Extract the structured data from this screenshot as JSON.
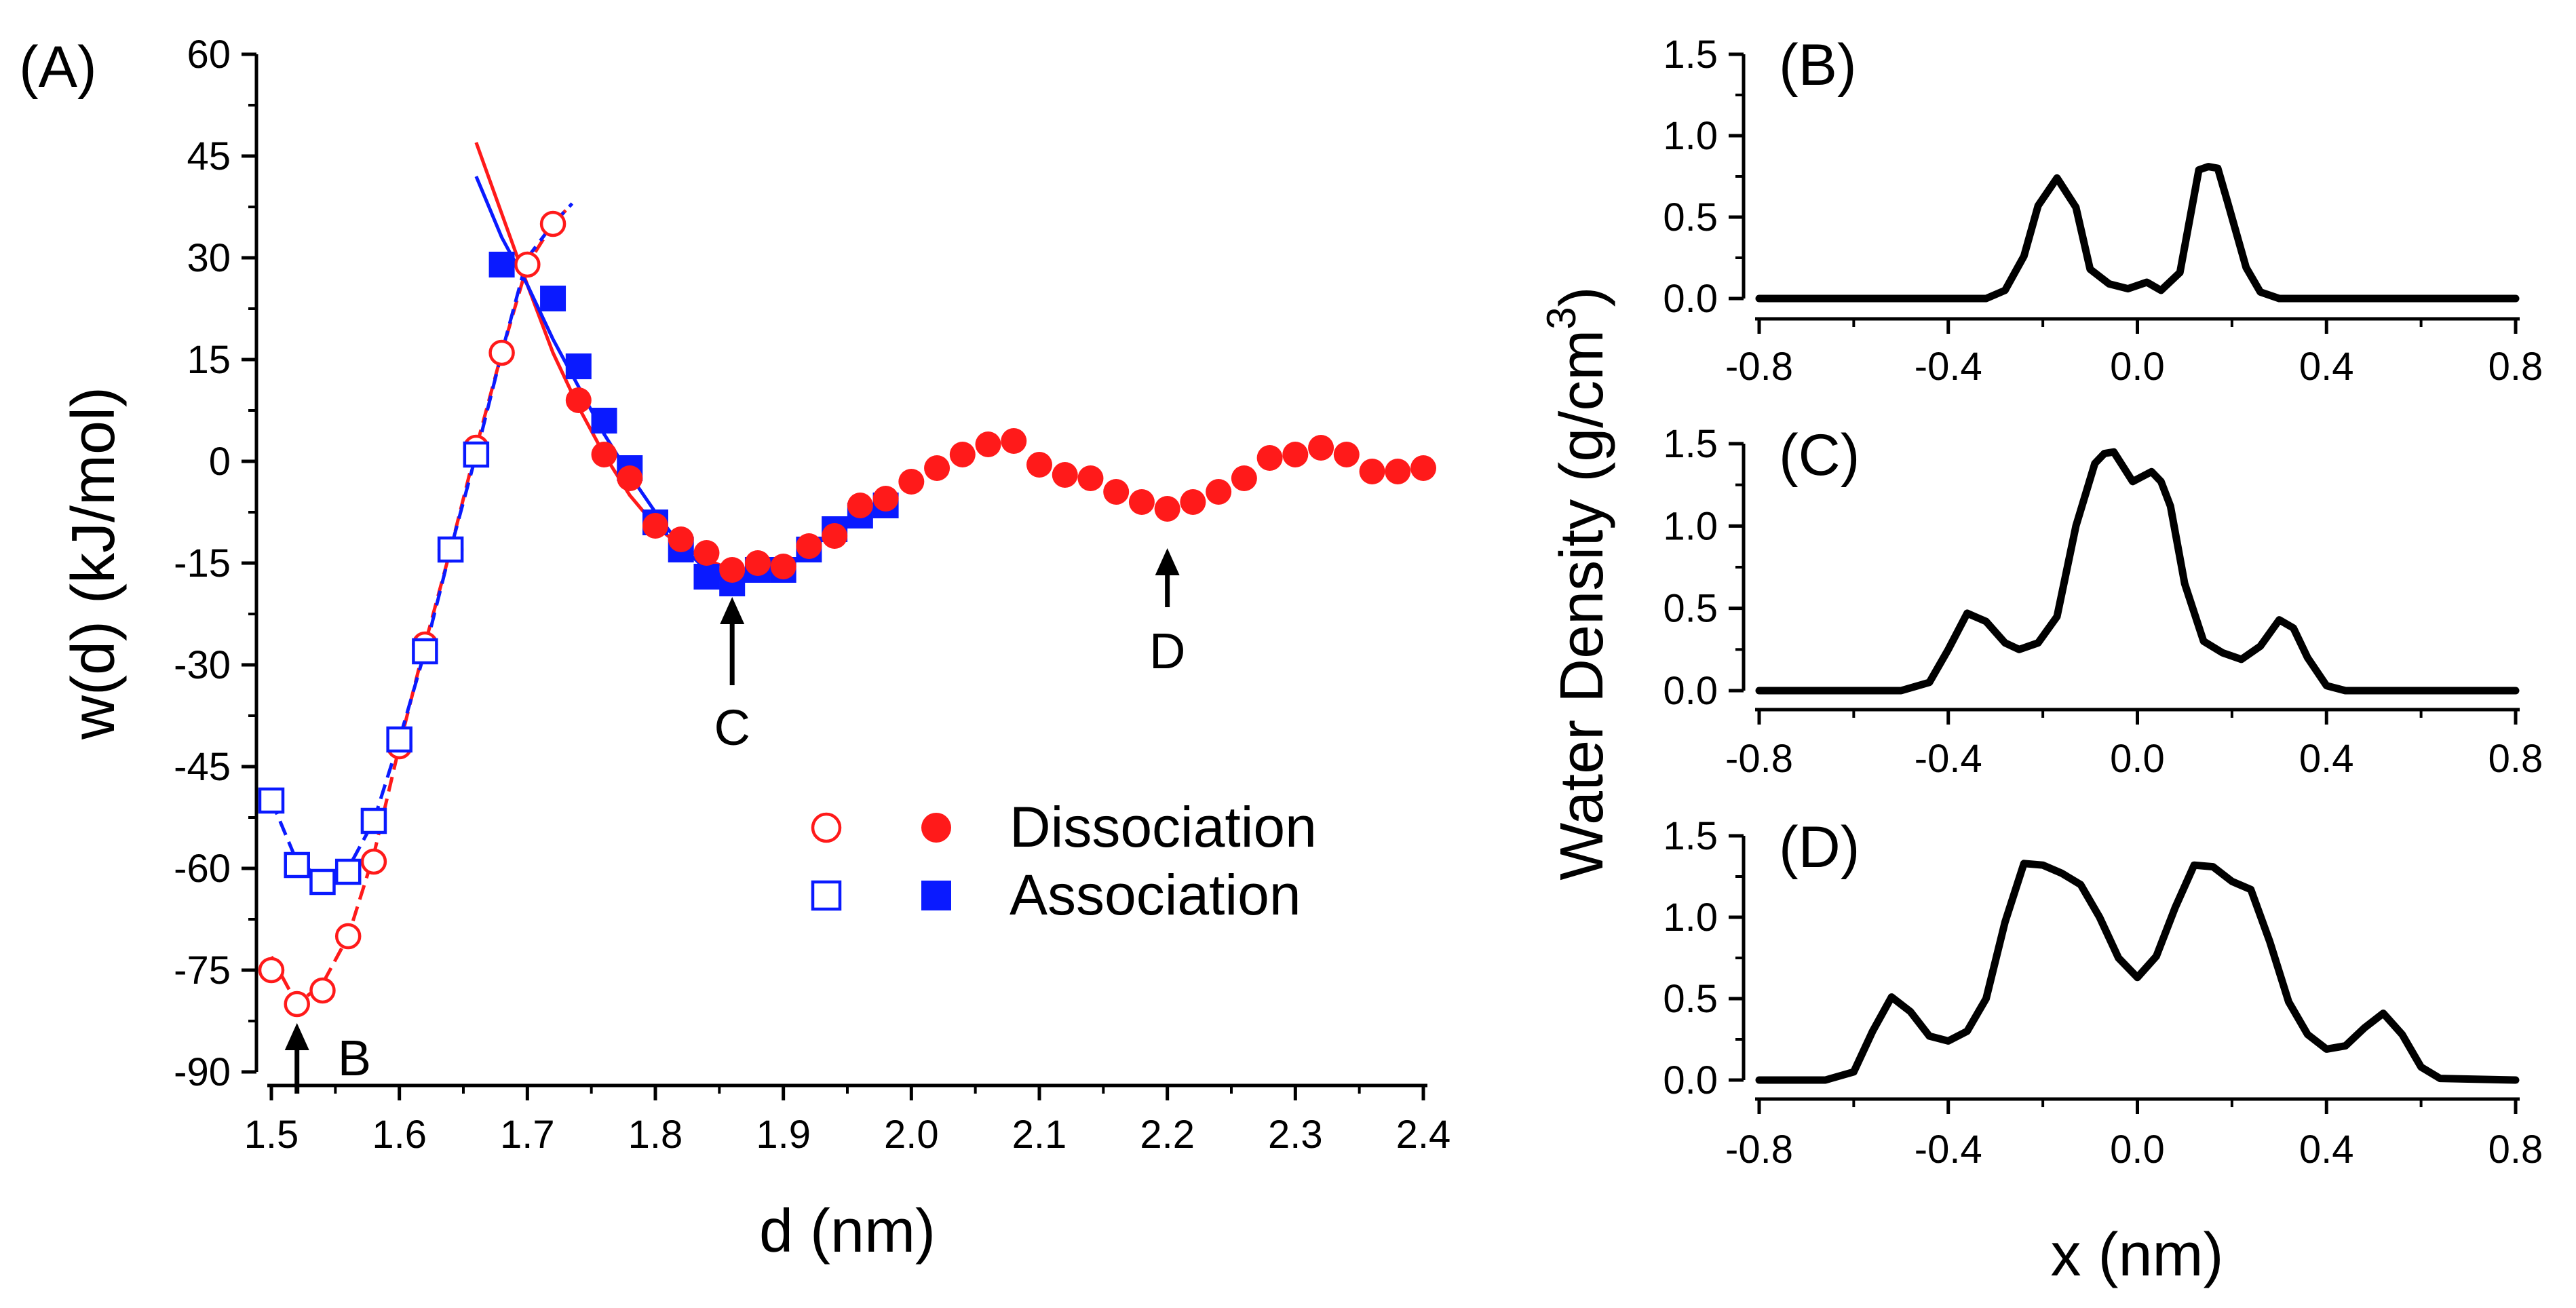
{
  "chart_data": [
    {
      "panel": "(A)",
      "type": "scatter",
      "xlabel": "d (nm)",
      "ylabel": "w(d) (kJ/mol)",
      "xlim": [
        1.5,
        2.4
      ],
      "ylim": [
        -90,
        60
      ],
      "x_ticks": [
        "1.5",
        "1.6",
        "1.7",
        "1.8",
        "1.9",
        "2.0",
        "2.1",
        "2.2",
        "2.3",
        "2.4"
      ],
      "y_ticks": [
        "60",
        "45",
        "30",
        "15",
        "0",
        "-15",
        "-30",
        "-45",
        "-60",
        "-75",
        "-90"
      ],
      "colors": {
        "dissociation": "#ff1a1a",
        "association": "#0a1aff"
      },
      "legend": [
        {
          "label": "Dissociation"
        },
        {
          "label": "Association"
        }
      ],
      "series": [
        {
          "name": "Dissociation (open)",
          "marker": "open-circle",
          "color": "#ff1a1a",
          "x": [
            1.5,
            1.52,
            1.54,
            1.56,
            1.58,
            1.6,
            1.62,
            1.64,
            1.66,
            1.68,
            1.7,
            1.72
          ],
          "y": [
            -75,
            -80,
            -78,
            -70,
            -59,
            -42,
            -27,
            -13,
            2,
            16,
            29,
            35
          ]
        },
        {
          "name": "Association (open)",
          "marker": "open-square",
          "color": "#0a1aff",
          "x": [
            1.5,
            1.52,
            1.54,
            1.56,
            1.58,
            1.6,
            1.62,
            1.64,
            1.66
          ],
          "y": [
            -50,
            -59.5,
            -62,
            -60.5,
            -53,
            -41,
            -28,
            -13,
            1
          ]
        },
        {
          "name": "Association (filled)",
          "marker": "filled-square",
          "color": "#0a1aff",
          "x": [
            1.68,
            1.72,
            1.74,
            1.76,
            1.78,
            1.8,
            1.82,
            1.84,
            1.86,
            1.88,
            1.9,
            1.92,
            1.94,
            1.96,
            1.98
          ],
          "y": [
            29,
            24,
            14,
            6,
            -1,
            -9,
            -13,
            -17,
            -18,
            -16,
            -16,
            -13,
            -10,
            -8,
            -6.5
          ]
        },
        {
          "name": "Dissociation (filled)",
          "marker": "filled-circle",
          "color": "#ff1a1a",
          "x": [
            1.74,
            1.76,
            1.78,
            1.8,
            1.82,
            1.84,
            1.86,
            1.88,
            1.9,
            1.92,
            1.94,
            1.96,
            1.98,
            2.0,
            2.02,
            2.04,
            2.06,
            2.08,
            2.1,
            2.12,
            2.14,
            2.16,
            2.18,
            2.2,
            2.22,
            2.24,
            2.26,
            2.28,
            2.3,
            2.32,
            2.34,
            2.36,
            2.38,
            2.4
          ],
          "y": [
            9,
            1,
            -2.5,
            -9.5,
            -11.5,
            -13.5,
            -16,
            -15,
            -15.5,
            -12.5,
            -11,
            -6.5,
            -5.5,
            -3,
            -1,
            1,
            2.5,
            3,
            -0.5,
            -2,
            -2.5,
            -4.5,
            -6,
            -7,
            -6,
            -4.5,
            -2.5,
            0.5,
            1,
            2,
            1,
            -1.5,
            -1.5,
            -1
          ]
        }
      ],
      "fit_lines": [
        {
          "name": "dissociation-dashed",
          "color": "#ff1a1a",
          "style": "dashed",
          "x": [
            1.5,
            1.52,
            1.54,
            1.56,
            1.58,
            1.6,
            1.62,
            1.64,
            1.66,
            1.68,
            1.7,
            1.72,
            1.73
          ],
          "y": [
            -73,
            -80,
            -77,
            -70,
            -58,
            -42,
            -27,
            -13,
            2,
            16,
            29,
            35,
            37
          ]
        },
        {
          "name": "association-dashed",
          "color": "#0a1aff",
          "style": "dashed",
          "x": [
            1.5,
            1.52,
            1.54,
            1.56,
            1.58,
            1.6,
            1.62,
            1.64,
            1.66,
            1.68,
            1.7,
            1.72,
            1.735
          ],
          "y": [
            -50,
            -59,
            -61.5,
            -60,
            -53,
            -41,
            -28,
            -13,
            1,
            16,
            30,
            35,
            38
          ]
        },
        {
          "name": "dissociation-solid",
          "color": "#ff1a1a",
          "style": "solid",
          "x": [
            1.66,
            1.7,
            1.72,
            1.74,
            1.76,
            1.78,
            1.8,
            1.82,
            1.84,
            1.86
          ],
          "y": [
            47,
            26,
            16,
            8,
            1,
            -5,
            -9.5,
            -12.5,
            -14.5,
            -16
          ]
        },
        {
          "name": "association-solid",
          "color": "#0a1aff",
          "style": "solid",
          "x": [
            1.66,
            1.68,
            1.7,
            1.72,
            1.74,
            1.76,
            1.78,
            1.8,
            1.82,
            1.84,
            1.86
          ],
          "y": [
            42,
            33,
            26,
            18,
            11,
            4,
            -2,
            -7.5,
            -12.5,
            -16,
            -18.5
          ]
        }
      ],
      "annotations": [
        {
          "label": "B",
          "x": 1.52
        },
        {
          "label": "C",
          "x": 1.86
        },
        {
          "label": "D",
          "x": 2.2
        }
      ]
    },
    {
      "panel": "(B)",
      "type": "line",
      "xlim": [
        -0.8,
        0.8
      ],
      "ylim": [
        0,
        1.5
      ],
      "x_ticks": [
        "-0.8",
        "-0.4",
        "0.0",
        "0.4",
        "0.8"
      ],
      "y_ticks": [
        "1.5",
        "1.0",
        "0.5",
        "0.0"
      ],
      "x": [
        -0.8,
        -0.32,
        -0.28,
        -0.24,
        -0.21,
        -0.17,
        -0.13,
        -0.1,
        -0.06,
        -0.02,
        0.02,
        0.05,
        0.09,
        0.13,
        0.15,
        0.17,
        0.19,
        0.23,
        0.26,
        0.3,
        0.34,
        0.8
      ],
      "y": [
        0.0,
        0.0,
        0.05,
        0.26,
        0.57,
        0.74,
        0.56,
        0.18,
        0.09,
        0.06,
        0.1,
        0.05,
        0.16,
        0.79,
        0.81,
        0.8,
        0.6,
        0.19,
        0.04,
        0.0,
        0.0,
        0.0
      ]
    },
    {
      "panel": "(C)",
      "type": "line",
      "xlim": [
        -0.8,
        0.8
      ],
      "ylim": [
        0,
        1.5
      ],
      "x_ticks": [
        "-0.8",
        "-0.4",
        "0.0",
        "0.4",
        "0.8"
      ],
      "y_ticks": [
        "1.5",
        "1.0",
        "0.5",
        "0.0"
      ],
      "x": [
        -0.8,
        -0.5,
        -0.44,
        -0.4,
        -0.36,
        -0.32,
        -0.28,
        -0.25,
        -0.21,
        -0.17,
        -0.13,
        -0.09,
        -0.07,
        -0.05,
        -0.03,
        -0.01,
        0.01,
        0.03,
        0.05,
        0.07,
        0.1,
        0.14,
        0.18,
        0.22,
        0.26,
        0.3,
        0.33,
        0.36,
        0.4,
        0.44,
        0.48,
        0.8
      ],
      "y": [
        0.0,
        0.0,
        0.05,
        0.25,
        0.47,
        0.42,
        0.29,
        0.25,
        0.29,
        0.45,
        1.0,
        1.38,
        1.44,
        1.45,
        1.36,
        1.27,
        1.3,
        1.33,
        1.27,
        1.12,
        0.65,
        0.3,
        0.23,
        0.19,
        0.27,
        0.43,
        0.38,
        0.2,
        0.03,
        0.0,
        0.0,
        0.0
      ]
    },
    {
      "panel": "(D)",
      "type": "line",
      "xlim": [
        -0.8,
        0.8
      ],
      "ylim": [
        0,
        1.5
      ],
      "x_ticks": [
        "-0.8",
        "-0.4",
        "0.0",
        "0.4",
        "0.8"
      ],
      "y_ticks": [
        "1.5",
        "1.0",
        "0.5",
        "0.0"
      ],
      "x": [
        -0.8,
        -0.66,
        -0.6,
        -0.56,
        -0.52,
        -0.48,
        -0.44,
        -0.4,
        -0.36,
        -0.32,
        -0.28,
        -0.24,
        -0.2,
        -0.16,
        -0.12,
        -0.08,
        -0.04,
        0.0,
        0.04,
        0.08,
        0.12,
        0.16,
        0.2,
        0.24,
        0.28,
        0.32,
        0.36,
        0.4,
        0.44,
        0.48,
        0.52,
        0.56,
        0.6,
        0.64,
        0.8
      ],
      "y": [
        0.0,
        0.0,
        0.05,
        0.3,
        0.51,
        0.42,
        0.27,
        0.24,
        0.3,
        0.5,
        0.97,
        1.33,
        1.32,
        1.27,
        1.2,
        1.0,
        0.75,
        0.63,
        0.76,
        1.06,
        1.32,
        1.31,
        1.22,
        1.17,
        0.85,
        0.48,
        0.28,
        0.19,
        0.21,
        0.32,
        0.41,
        0.28,
        0.08,
        0.01,
        0.0
      ]
    }
  ],
  "right_ylabel": {
    "main": "Water Density (g/cm",
    "sup": "3",
    "close": ")"
  },
  "right_xlabel": "x (nm)"
}
